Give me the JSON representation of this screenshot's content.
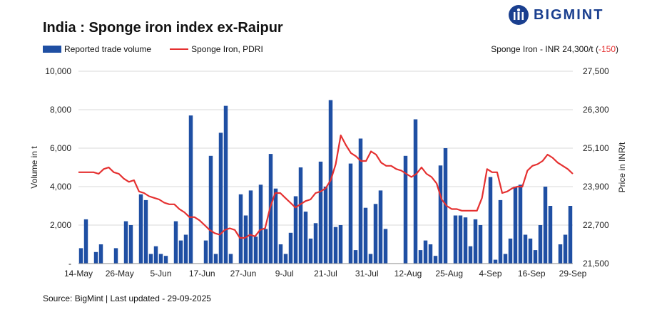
{
  "title": "India : Sponge iron index ex-Raipur",
  "brand": "BIGMINT",
  "legend": {
    "bar_label": "Reported trade volume",
    "line_label": "Sponge Iron, PDRI"
  },
  "price_note": {
    "text": "Sponge Iron - INR 24,300/t (",
    "change": "-150",
    "close": ")"
  },
  "source": "Source: BigMint | Last updated - 29-09-2025",
  "colors": {
    "bar": "#1f4fa3",
    "line": "#e53030",
    "brand": "#1a3f8f"
  },
  "chart_data": {
    "type": "bar+line",
    "ylabel": "Volume in t",
    "y2label": "Price in INR/t",
    "ylim": [
      0,
      10000
    ],
    "y2lim": [
      21500,
      27500
    ],
    "y_ticks": [
      "-",
      "2,000",
      "4,000",
      "6,000",
      "8,000",
      "10,000"
    ],
    "y2_ticks": [
      "21,500",
      "22,700",
      "23,900",
      "25,100",
      "26,300",
      "27,500"
    ],
    "x_tick_labels": [
      "14-May",
      "26-May",
      "5-Jun",
      "17-Jun",
      "27-Jun",
      "9-Jul",
      "21-Jul",
      "31-Jul",
      "12-Aug",
      "25-Aug",
      "4-Sep",
      "16-Sep",
      "29-Sep"
    ],
    "grid": "horizontal",
    "series": [
      {
        "name": "Reported trade volume",
        "kind": "bar",
        "axis": "left",
        "values": [
          800,
          2300,
          0,
          600,
          1000,
          0,
          0,
          800,
          0,
          2200,
          2000,
          0,
          3600,
          3300,
          500,
          900,
          500,
          400,
          0,
          2200,
          1200,
          1500,
          7700,
          0,
          0,
          1200,
          5600,
          500,
          6800,
          8200,
          500,
          0,
          3600,
          2500,
          3800,
          1400,
          4100,
          1800,
          5700,
          3900,
          1000,
          500,
          1600,
          3500,
          5000,
          2700,
          1300,
          2100,
          5300,
          4000,
          8500,
          1900,
          2000,
          0,
          5200,
          700,
          6500,
          2900,
          500,
          3100,
          3800,
          1800,
          0,
          0,
          0,
          5600,
          0,
          7500,
          700,
          1200,
          1000,
          400,
          5100,
          6000,
          0,
          2500,
          2500,
          2400,
          900,
          2300,
          2000,
          0,
          4500,
          200,
          3300,
          500,
          1300,
          4000,
          4100,
          1500,
          1300,
          700,
          2000,
          4000,
          3000,
          0,
          1000,
          1500,
          3000
        ]
      },
      {
        "name": "Sponge Iron, PDRI",
        "kind": "line",
        "axis": "right",
        "values": [
          24350,
          24350,
          24350,
          24350,
          24300,
          24450,
          24500,
          24350,
          24300,
          24150,
          24050,
          24100,
          23750,
          23700,
          23600,
          23550,
          23500,
          23400,
          23350,
          23350,
          23200,
          23100,
          22950,
          22950,
          22850,
          22700,
          22550,
          22450,
          22400,
          22550,
          22600,
          22550,
          22300,
          22300,
          22400,
          22350,
          22550,
          22600,
          23250,
          23700,
          23700,
          23550,
          23400,
          23250,
          23350,
          23450,
          23500,
          23700,
          23750,
          23850,
          24100,
          24600,
          25500,
          25200,
          24950,
          24850,
          24700,
          24700,
          25000,
          24900,
          24650,
          24550,
          24550,
          24450,
          24400,
          24300,
          24200,
          24300,
          24500,
          24300,
          24200,
          24000,
          23500,
          23300,
          23200,
          23200,
          23150,
          23150,
          23150,
          23150,
          23550,
          24450,
          24350,
          24350,
          23700,
          23750,
          23850,
          23900,
          23900,
          24400,
          24550,
          24600,
          24700,
          24900,
          24800,
          24650,
          24550,
          24450,
          24300
        ]
      }
    ]
  }
}
